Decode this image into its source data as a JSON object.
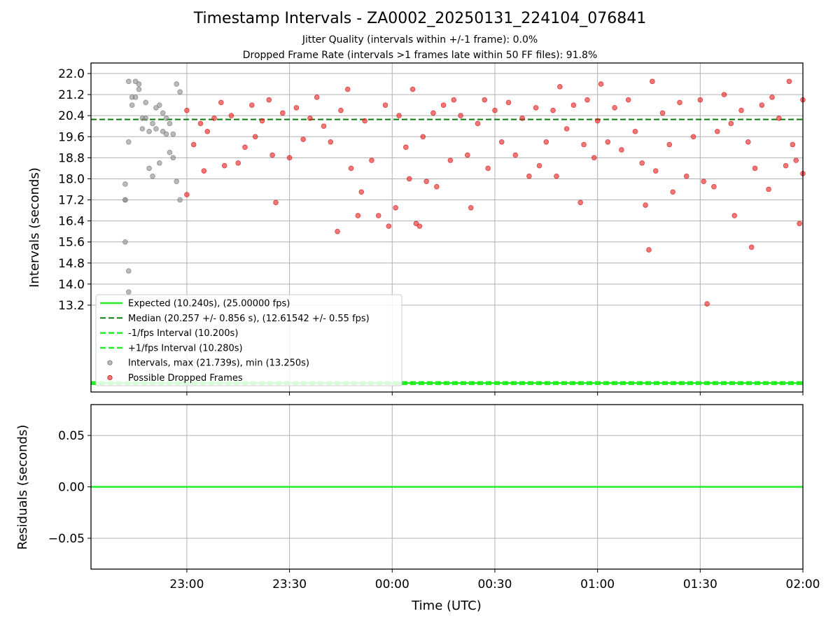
{
  "title": "Timestamp Intervals - ZA0002_20250131_224104_076841",
  "subtitle_1": "Jitter Quality (intervals within +/-1 frame): 0.0%",
  "subtitle_2": "Dropped Frame Rate (intervals >1 frames late within 50 FF files): 91.8%",
  "colors": {
    "expected": "#22ee22",
    "median": "#0a7a0a",
    "bounds": "#22ee22",
    "intervals": "#909090",
    "dropped": "#ee2222"
  },
  "chart_data": [
    {
      "type": "scatter",
      "name": "intervals-panel",
      "xlabel": "Time (UTC)",
      "ylabel": "Intervals (seconds)",
      "xlim": [
        "22:32",
        "02:00"
      ],
      "ylim": [
        9.9,
        22.4
      ],
      "yticks": [
        13.2,
        14.0,
        14.8,
        15.6,
        16.4,
        17.2,
        18.0,
        18.8,
        19.6,
        20.4,
        21.2,
        22.0
      ],
      "ytick_labels": [
        "13.2",
        "14.0",
        "14.8",
        "15.6",
        "16.4",
        "17.2",
        "18.0",
        "18.8",
        "19.6",
        "20.4",
        "21.2",
        "22.0"
      ],
      "xticks": [
        "23:00",
        "23:30",
        "00:00",
        "00:30",
        "01:00",
        "01:30",
        "02:00"
      ],
      "grid": true,
      "legend_position": "lower-left",
      "lines": [
        {
          "name": "Expected (10.240s), (25.00000 fps)",
          "y": 10.24,
          "style": "solid"
        },
        {
          "name": "Median (20.257 +/- 0.856 s), (12.61542 +/- 0.55 fps)",
          "y": 20.257,
          "style": "dashed"
        },
        {
          "name": "-1/fps Interval (10.200s)",
          "y": 10.2,
          "style": "dashed"
        },
        {
          "name": "+1/fps Interval (10.280s)",
          "y": 10.28,
          "style": "dashed"
        }
      ],
      "series": [
        {
          "name": "Intervals, max (21.739s), min (13.250s)",
          "marker": "circle",
          "points": [
            [
              "22:42",
              17.8
            ],
            [
              "22:42",
              17.2
            ],
            [
              "22:42",
              17.2
            ],
            [
              "22:42",
              15.6
            ],
            [
              "22:43",
              14.5
            ],
            [
              "22:43",
              13.7
            ],
            [
              "22:43",
              19.4
            ],
            [
              "22:43",
              21.7
            ],
            [
              "22:44",
              21.1
            ],
            [
              "22:44",
              20.8
            ],
            [
              "22:45",
              21.7
            ],
            [
              "22:45",
              21.1
            ],
            [
              "22:46",
              21.6
            ],
            [
              "22:46",
              21.4
            ],
            [
              "22:47",
              20.3
            ],
            [
              "22:47",
              19.9
            ],
            [
              "22:48",
              20.3
            ],
            [
              "22:48",
              20.9
            ],
            [
              "22:49",
              18.4
            ],
            [
              "22:49",
              19.8
            ],
            [
              "22:50",
              20.1
            ],
            [
              "22:50",
              18.1
            ],
            [
              "22:51",
              20.7
            ],
            [
              "22:51",
              19.9
            ],
            [
              "22:52",
              18.6
            ],
            [
              "22:52",
              20.8
            ],
            [
              "22:53",
              19.8
            ],
            [
              "22:53",
              20.5
            ],
            [
              "22:54",
              19.7
            ],
            [
              "22:54",
              20.3
            ],
            [
              "22:55",
              19.0
            ],
            [
              "22:55",
              20.1
            ],
            [
              "22:56",
              18.8
            ],
            [
              "22:56",
              19.7
            ],
            [
              "22:57",
              21.6
            ],
            [
              "22:57",
              17.9
            ],
            [
              "22:58",
              17.2
            ],
            [
              "22:58",
              21.3
            ]
          ]
        },
        {
          "name": "Possible Dropped Frames",
          "marker": "circle",
          "points": [
            [
              "23:00",
              17.4
            ],
            [
              "23:00",
              20.6
            ],
            [
              "23:02",
              19.3
            ],
            [
              "23:04",
              20.1
            ],
            [
              "23:05",
              18.3
            ],
            [
              "23:06",
              19.8
            ],
            [
              "23:08",
              20.3
            ],
            [
              "23:10",
              20.9
            ],
            [
              "23:11",
              18.5
            ],
            [
              "23:13",
              20.4
            ],
            [
              "23:15",
              18.6
            ],
            [
              "23:17",
              19.2
            ],
            [
              "23:19",
              20.8
            ],
            [
              "23:20",
              19.6
            ],
            [
              "23:22",
              20.2
            ],
            [
              "23:24",
              21.0
            ],
            [
              "23:25",
              18.9
            ],
            [
              "23:26",
              17.1
            ],
            [
              "23:28",
              20.5
            ],
            [
              "23:30",
              18.8
            ],
            [
              "23:32",
              20.7
            ],
            [
              "23:34",
              19.5
            ],
            [
              "23:36",
              20.3
            ],
            [
              "23:38",
              21.1
            ],
            [
              "23:40",
              20.0
            ],
            [
              "23:42",
              19.4
            ],
            [
              "23:44",
              16.0
            ],
            [
              "23:45",
              20.6
            ],
            [
              "23:47",
              21.4
            ],
            [
              "23:48",
              18.4
            ],
            [
              "23:50",
              16.6
            ],
            [
              "23:51",
              17.5
            ],
            [
              "23:52",
              20.2
            ],
            [
              "23:54",
              18.7
            ],
            [
              "23:56",
              16.6
            ],
            [
              "23:58",
              20.8
            ],
            [
              "23:59",
              16.2
            ],
            [
              "00:01",
              16.9
            ],
            [
              "00:02",
              20.4
            ],
            [
              "00:04",
              19.2
            ],
            [
              "00:05",
              18.0
            ],
            [
              "00:06",
              21.4
            ],
            [
              "00:07",
              16.3
            ],
            [
              "00:08",
              16.2
            ],
            [
              "00:09",
              19.6
            ],
            [
              "00:10",
              17.9
            ],
            [
              "00:12",
              20.5
            ],
            [
              "00:13",
              17.7
            ],
            [
              "00:15",
              20.8
            ],
            [
              "00:17",
              18.7
            ],
            [
              "00:18",
              21.0
            ],
            [
              "00:20",
              20.4
            ],
            [
              "00:22",
              18.9
            ],
            [
              "00:23",
              16.9
            ],
            [
              "00:25",
              20.1
            ],
            [
              "00:27",
              21.0
            ],
            [
              "00:28",
              18.4
            ],
            [
              "00:30",
              20.6
            ],
            [
              "00:32",
              19.4
            ],
            [
              "00:34",
              20.9
            ],
            [
              "00:36",
              18.9
            ],
            [
              "00:38",
              20.3
            ],
            [
              "00:40",
              18.1
            ],
            [
              "00:42",
              20.7
            ],
            [
              "00:43",
              18.5
            ],
            [
              "00:45",
              19.4
            ],
            [
              "00:47",
              20.6
            ],
            [
              "00:48",
              18.1
            ],
            [
              "00:49",
              21.5
            ],
            [
              "00:51",
              19.9
            ],
            [
              "00:53",
              20.8
            ],
            [
              "00:55",
              17.1
            ],
            [
              "00:56",
              19.3
            ],
            [
              "00:57",
              21.0
            ],
            [
              "00:59",
              18.8
            ],
            [
              "01:00",
              20.2
            ],
            [
              "01:01",
              21.6
            ],
            [
              "01:03",
              19.4
            ],
            [
              "01:05",
              20.7
            ],
            [
              "01:07",
              19.1
            ],
            [
              "01:09",
              21.0
            ],
            [
              "01:11",
              19.8
            ],
            [
              "01:13",
              18.6
            ],
            [
              "01:14",
              17.0
            ],
            [
              "01:15",
              15.3
            ],
            [
              "01:16",
              21.7
            ],
            [
              "01:17",
              18.3
            ],
            [
              "01:19",
              20.5
            ],
            [
              "01:21",
              19.3
            ],
            [
              "01:22",
              17.5
            ],
            [
              "01:24",
              20.9
            ],
            [
              "01:26",
              18.1
            ],
            [
              "01:28",
              19.6
            ],
            [
              "01:30",
              21.0
            ],
            [
              "01:31",
              17.9
            ],
            [
              "01:32",
              13.25
            ],
            [
              "01:34",
              17.7
            ],
            [
              "01:35",
              19.8
            ],
            [
              "01:37",
              21.2
            ],
            [
              "01:39",
              20.1
            ],
            [
              "01:40",
              16.6
            ],
            [
              "01:42",
              20.6
            ],
            [
              "01:44",
              19.4
            ],
            [
              "01:45",
              15.4
            ],
            [
              "01:46",
              18.4
            ],
            [
              "01:48",
              20.8
            ],
            [
              "01:50",
              17.6
            ],
            [
              "01:51",
              21.1
            ],
            [
              "01:53",
              20.3
            ],
            [
              "01:55",
              18.5
            ],
            [
              "01:56",
              21.7
            ],
            [
              "01:57",
              19.3
            ],
            [
              "01:58",
              18.7
            ],
            [
              "01:59",
              16.3
            ],
            [
              "02:00",
              18.2
            ],
            [
              "02:00",
              21.0
            ]
          ]
        }
      ]
    },
    {
      "type": "line",
      "name": "residuals-panel",
      "xlabel": "Time (UTC)",
      "ylabel": "Residuals (seconds)",
      "xlim": [
        "22:32",
        "02:00"
      ],
      "ylim": [
        -0.08,
        0.08
      ],
      "yticks": [
        0.05,
        0.0,
        -0.05
      ],
      "ytick_labels": [
        "0.05",
        "0.00",
        "−0.05"
      ],
      "xticks": [
        "23:00",
        "23:30",
        "00:00",
        "00:30",
        "01:00",
        "01:30",
        "02:00"
      ],
      "grid": true,
      "series": [
        {
          "name": "Residuals",
          "y": 0.0
        }
      ]
    }
  ]
}
